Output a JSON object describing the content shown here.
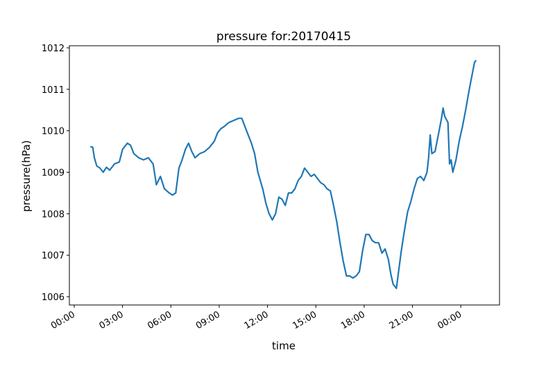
{
  "chart_data": {
    "type": "line",
    "title": "pressure for:20170415",
    "xlabel": "time",
    "ylabel": "pressure(hPa)",
    "x_tick_labels": [
      "00:00",
      "03:00",
      "06:00",
      "09:00",
      "12:00",
      "15:00",
      "18:00",
      "21:00",
      "00:00"
    ],
    "x_tick_hours": [
      0,
      3,
      6,
      9,
      12,
      15,
      18,
      21,
      24
    ],
    "xlim_hours": [
      -0.3,
      26.4
    ],
    "y_ticks": [
      1006,
      1007,
      1008,
      1009,
      1010,
      1011,
      1012
    ],
    "ylim": [
      1005.8,
      1012.05
    ],
    "grid": false,
    "series": [
      {
        "color": "#1f77b4",
        "points": [
          [
            1.0,
            1009.62
          ],
          [
            1.15,
            1009.6
          ],
          [
            1.25,
            1009.35
          ],
          [
            1.4,
            1009.15
          ],
          [
            1.6,
            1009.1
          ],
          [
            1.8,
            1009.0
          ],
          [
            2.0,
            1009.12
          ],
          [
            2.2,
            1009.05
          ],
          [
            2.5,
            1009.2
          ],
          [
            2.8,
            1009.25
          ],
          [
            3.0,
            1009.55
          ],
          [
            3.3,
            1009.7
          ],
          [
            3.5,
            1009.65
          ],
          [
            3.7,
            1009.45
          ],
          [
            4.0,
            1009.35
          ],
          [
            4.3,
            1009.3
          ],
          [
            4.6,
            1009.35
          ],
          [
            4.9,
            1009.2
          ],
          [
            5.1,
            1008.7
          ],
          [
            5.35,
            1008.9
          ],
          [
            5.6,
            1008.6
          ],
          [
            5.9,
            1008.5
          ],
          [
            6.1,
            1008.45
          ],
          [
            6.3,
            1008.5
          ],
          [
            6.5,
            1009.1
          ],
          [
            6.7,
            1009.3
          ],
          [
            6.9,
            1009.55
          ],
          [
            7.1,
            1009.7
          ],
          [
            7.3,
            1009.5
          ],
          [
            7.5,
            1009.35
          ],
          [
            7.8,
            1009.45
          ],
          [
            8.1,
            1009.5
          ],
          [
            8.4,
            1009.6
          ],
          [
            8.7,
            1009.75
          ],
          [
            8.9,
            1009.95
          ],
          [
            9.1,
            1010.05
          ],
          [
            9.3,
            1010.1
          ],
          [
            9.6,
            1010.2
          ],
          [
            9.9,
            1010.25
          ],
          [
            10.2,
            1010.3
          ],
          [
            10.4,
            1010.3
          ],
          [
            10.7,
            1010.0
          ],
          [
            11.0,
            1009.7
          ],
          [
            11.2,
            1009.45
          ],
          [
            11.4,
            1009.0
          ],
          [
            11.7,
            1008.6
          ],
          [
            11.9,
            1008.25
          ],
          [
            12.1,
            1008.0
          ],
          [
            12.3,
            1007.85
          ],
          [
            12.5,
            1008.0
          ],
          [
            12.7,
            1008.4
          ],
          [
            12.9,
            1008.35
          ],
          [
            13.1,
            1008.2
          ],
          [
            13.3,
            1008.5
          ],
          [
            13.5,
            1008.5
          ],
          [
            13.7,
            1008.6
          ],
          [
            13.9,
            1008.8
          ],
          [
            14.1,
            1008.9
          ],
          [
            14.3,
            1009.1
          ],
          [
            14.5,
            1009.0
          ],
          [
            14.7,
            1008.9
          ],
          [
            14.9,
            1008.95
          ],
          [
            15.1,
            1008.85
          ],
          [
            15.3,
            1008.75
          ],
          [
            15.5,
            1008.7
          ],
          [
            15.7,
            1008.6
          ],
          [
            15.9,
            1008.55
          ],
          [
            16.1,
            1008.2
          ],
          [
            16.3,
            1007.8
          ],
          [
            16.5,
            1007.3
          ],
          [
            16.7,
            1006.85
          ],
          [
            16.9,
            1006.5
          ],
          [
            17.1,
            1006.5
          ],
          [
            17.3,
            1006.45
          ],
          [
            17.5,
            1006.5
          ],
          [
            17.7,
            1006.6
          ],
          [
            17.9,
            1007.1
          ],
          [
            18.1,
            1007.5
          ],
          [
            18.3,
            1007.5
          ],
          [
            18.5,
            1007.35
          ],
          [
            18.7,
            1007.3
          ],
          [
            18.9,
            1007.3
          ],
          [
            19.1,
            1007.05
          ],
          [
            19.3,
            1007.15
          ],
          [
            19.5,
            1006.9
          ],
          [
            19.65,
            1006.55
          ],
          [
            19.8,
            1006.3
          ],
          [
            20.0,
            1006.2
          ],
          [
            20.1,
            1006.5
          ],
          [
            20.3,
            1007.1
          ],
          [
            20.5,
            1007.6
          ],
          [
            20.7,
            1008.05
          ],
          [
            20.9,
            1008.3
          ],
          [
            21.1,
            1008.6
          ],
          [
            21.3,
            1008.85
          ],
          [
            21.5,
            1008.9
          ],
          [
            21.7,
            1008.8
          ],
          [
            21.9,
            1009.0
          ],
          [
            22.0,
            1009.35
          ],
          [
            22.1,
            1009.9
          ],
          [
            22.2,
            1009.45
          ],
          [
            22.4,
            1009.5
          ],
          [
            22.6,
            1009.9
          ],
          [
            22.8,
            1010.3
          ],
          [
            22.9,
            1010.55
          ],
          [
            23.0,
            1010.35
          ],
          [
            23.2,
            1010.2
          ],
          [
            23.3,
            1009.2
          ],
          [
            23.4,
            1009.3
          ],
          [
            23.5,
            1009.0
          ],
          [
            23.7,
            1009.3
          ],
          [
            23.9,
            1009.75
          ],
          [
            24.1,
            1010.1
          ],
          [
            24.3,
            1010.5
          ],
          [
            24.5,
            1010.95
          ],
          [
            24.7,
            1011.35
          ],
          [
            24.85,
            1011.65
          ],
          [
            24.95,
            1011.7
          ]
        ]
      }
    ]
  }
}
